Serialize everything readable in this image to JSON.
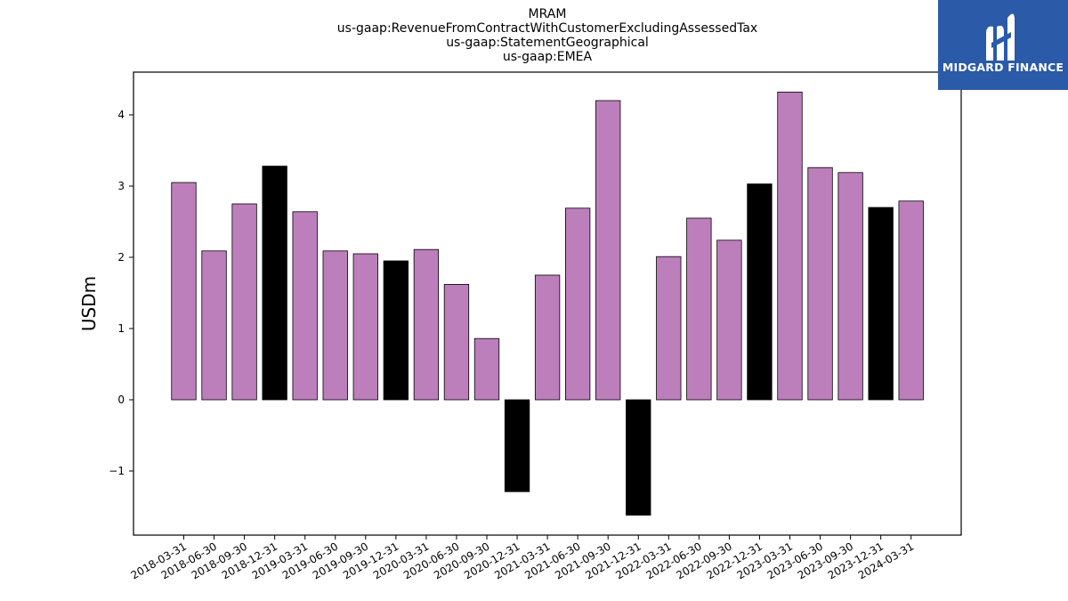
{
  "chart_data": {
    "type": "bar",
    "title_lines": [
      "MRAM",
      "us-gaap:RevenueFromContractWithCustomerExcludingAssessedTax",
      "us-gaap:StatementGeographical",
      "us-gaap:EMEA"
    ],
    "ylabel": "USDm",
    "xlabel": "",
    "ylim": [
      -1.9,
      4.6
    ],
    "yticks": [
      -1,
      0,
      1,
      2,
      3,
      4
    ],
    "ytick_labels": [
      "−1",
      "0",
      "1",
      "2",
      "3",
      "4"
    ],
    "categories": [
      "2018-03-31",
      "2018-06-30",
      "2018-09-30",
      "2018-12-31",
      "2019-03-31",
      "2019-06-30",
      "2019-09-30",
      "2019-12-31",
      "2020-03-31",
      "2020-06-30",
      "2020-09-30",
      "2020-12-31",
      "2021-03-31",
      "2021-06-30",
      "2021-09-30",
      "2021-12-31",
      "2022-03-31",
      "2022-06-30",
      "2022-09-30",
      "2022-12-31",
      "2023-03-31",
      "2023-06-30",
      "2023-09-30",
      "2023-12-31",
      "2024-03-31"
    ],
    "values": [
      3.05,
      2.09,
      2.75,
      3.28,
      2.64,
      2.09,
      2.05,
      1.95,
      2.11,
      1.62,
      0.86,
      -1.29,
      1.75,
      2.69,
      4.2,
      -1.62,
      2.01,
      2.55,
      2.24,
      3.03,
      4.32,
      3.26,
      3.19,
      2.7,
      2.79
    ],
    "bar_colors": [
      "#bc7fbc",
      "#bc7fbc",
      "#bc7fbc",
      "#000000",
      "#bc7fbc",
      "#bc7fbc",
      "#bc7fbc",
      "#000000",
      "#bc7fbc",
      "#bc7fbc",
      "#bc7fbc",
      "#000000",
      "#bc7fbc",
      "#bc7fbc",
      "#bc7fbc",
      "#000000",
      "#bc7fbc",
      "#bc7fbc",
      "#bc7fbc",
      "#000000",
      "#bc7fbc",
      "#bc7fbc",
      "#bc7fbc",
      "#000000",
      "#bc7fbc"
    ],
    "grid": false
  },
  "logo": {
    "text": "MIDGARD FINANCE",
    "background": "#2a5aa8"
  }
}
